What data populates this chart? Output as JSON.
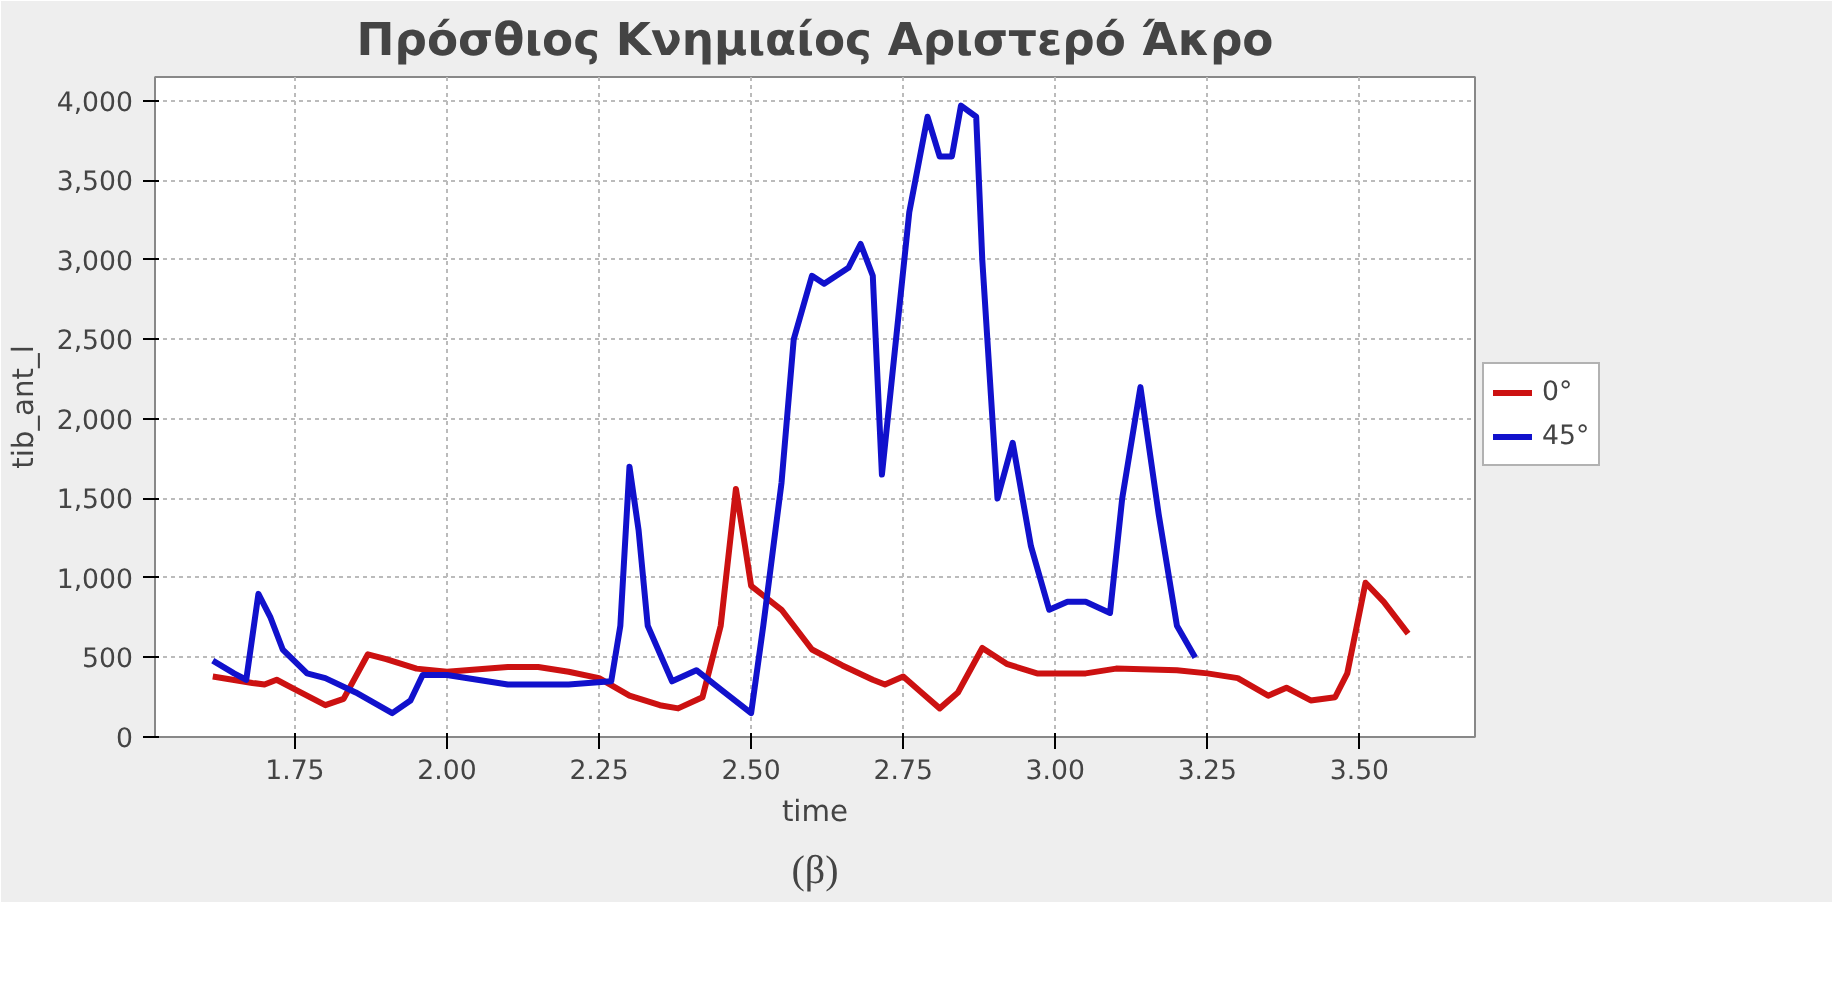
{
  "chart_data": {
    "type": "line",
    "title": "Πρόσθιος Κνημιαίος Αριστερό Άκρο",
    "xlabel": "time",
    "ylabel": "tib_ant_l",
    "xlim": [
      1.52,
      3.69
    ],
    "ylim": [
      0,
      4150
    ],
    "xticks": [
      {
        "value": 1.75,
        "label": "1.75"
      },
      {
        "value": 2.0,
        "label": "2.00"
      },
      {
        "value": 2.25,
        "label": "2.25"
      },
      {
        "value": 2.5,
        "label": "2.50"
      },
      {
        "value": 2.75,
        "label": "2.75"
      },
      {
        "value": 3.0,
        "label": "3.00"
      },
      {
        "value": 3.25,
        "label": "3.25"
      },
      {
        "value": 3.5,
        "label": "3.50"
      }
    ],
    "yticks": [
      0,
      {
        "value": 500,
        "label": "500"
      },
      {
        "value": 1000,
        "label": "1,000"
      },
      {
        "value": 1500,
        "label": "1,500"
      },
      {
        "value": 2000,
        "label": "2,000"
      },
      {
        "value": 2500,
        "label": "2,500"
      },
      {
        "value": 3000,
        "label": "3,000"
      },
      {
        "value": 3500,
        "label": "3,500"
      },
      {
        "value": 4000,
        "label": "4,000"
      }
    ],
    "grid": true,
    "legend": "right",
    "annotations": [
      "(β)"
    ],
    "series": [
      {
        "name": "0°",
        "color": "#cc1111",
        "x": [
          1.615,
          1.68,
          1.7,
          1.72,
          1.75,
          1.8,
          1.83,
          1.87,
          1.9,
          1.95,
          2.0,
          2.1,
          2.15,
          2.2,
          2.25,
          2.3,
          2.35,
          2.38,
          2.42,
          2.45,
          2.475,
          2.49,
          2.5,
          2.55,
          2.6,
          2.65,
          2.7,
          2.72,
          2.75,
          2.78,
          2.81,
          2.84,
          2.88,
          2.92,
          2.97,
          3.05,
          3.1,
          3.2,
          3.25,
          3.3,
          3.35,
          3.38,
          3.42,
          3.46,
          3.48,
          3.51,
          3.54,
          3.58
        ],
        "values": [
          380,
          340,
          330,
          360,
          300,
          200,
          240,
          520,
          490,
          430,
          410,
          440,
          440,
          410,
          370,
          260,
          200,
          180,
          250,
          700,
          1560,
          1200,
          950,
          800,
          550,
          450,
          360,
          330,
          380,
          280,
          180,
          280,
          560,
          460,
          400,
          400,
          430,
          420,
          400,
          370,
          260,
          310,
          230,
          250,
          400,
          970,
          850,
          650
        ]
      },
      {
        "name": "45°",
        "color": "#1111cc",
        "x": [
          1.615,
          1.65,
          1.67,
          1.69,
          1.71,
          1.73,
          1.77,
          1.8,
          1.85,
          1.91,
          1.94,
          1.96,
          2.0,
          2.1,
          2.2,
          2.27,
          2.285,
          2.3,
          2.315,
          2.33,
          2.37,
          2.41,
          2.45,
          2.5,
          2.52,
          2.55,
          2.57,
          2.6,
          2.62,
          2.64,
          2.66,
          2.68,
          2.7,
          2.715,
          2.73,
          2.76,
          2.79,
          2.81,
          2.83,
          2.845,
          2.87,
          2.88,
          2.905,
          2.93,
          2.96,
          2.99,
          3.02,
          3.05,
          3.09,
          3.11,
          3.14,
          3.17,
          3.2,
          3.23
        ],
        "values": [
          480,
          400,
          360,
          900,
          750,
          550,
          400,
          370,
          280,
          150,
          230,
          390,
          390,
          330,
          330,
          350,
          700,
          1700,
          1300,
          700,
          350,
          420,
          300,
          150,
          700,
          1600,
          2500,
          2900,
          2850,
          2900,
          2950,
          3100,
          2900,
          1650,
          2200,
          3300,
          3900,
          3650,
          3650,
          3970,
          3900,
          3000,
          1500,
          1850,
          1200,
          800,
          850,
          850,
          780,
          1500,
          2200,
          1400,
          700,
          500
        ]
      }
    ]
  }
}
